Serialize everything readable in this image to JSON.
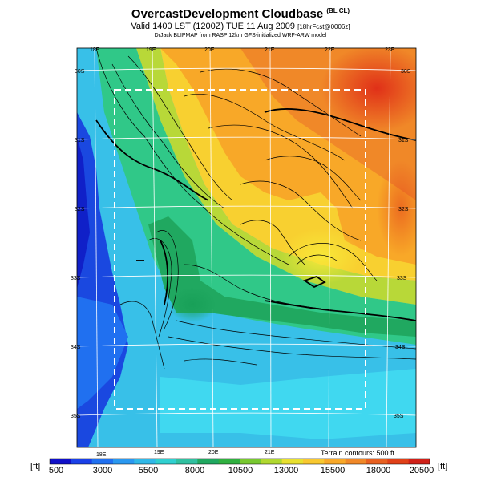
{
  "title": {
    "main": "OvercastDevelopment Cloudbase",
    "main_suffix": "(BL CL)",
    "valid": "Valid 1400 LST (1200Z) TUE 11 Aug 2009",
    "valid_suffix": "[18hrFcst@0006z]",
    "credit": "DrJack BLIPMAP from RASP 12km GFS-initialized WRF-ARW model"
  },
  "map": {
    "lon_labels_top": [
      "18E",
      "19E",
      "20E",
      "21E",
      "22E",
      "23E"
    ],
    "lon_labels_bottom": [
      "18E",
      "19E",
      "20E",
      "21E"
    ],
    "lat_labels_left": [
      "30S",
      "31S",
      "32S",
      "33S",
      "34S",
      "35S"
    ],
    "lat_labels_right": [
      "30S",
      "31S",
      "32S",
      "33S",
      "34S",
      "35S"
    ],
    "terrain_note": "Terrain contours: 500 ft"
  },
  "colorbar": {
    "unit_left": "[ft]",
    "unit_right": "[ft]",
    "tick_labels": [
      "500",
      "3000",
      "5500",
      "8000",
      "10500",
      "13000",
      "15500",
      "18000",
      "20500"
    ],
    "colors": [
      "#1010c8",
      "#1a40e8",
      "#2070f0",
      "#2a98f0",
      "#30b8e8",
      "#30d0d0",
      "#30c0a0",
      "#20a860",
      "#30b040",
      "#78c830",
      "#b0d830",
      "#e8e030",
      "#f8c830",
      "#f8a828",
      "#f08828",
      "#e86020",
      "#e04018",
      "#d02018"
    ]
  },
  "chart_data": {
    "type": "heatmap",
    "title": "OvercastDevelopment Cloudbase",
    "legend": "colorbar-bottom",
    "colorbar_range_ft": [
      500,
      20500
    ],
    "x_ticks": [
      "18E",
      "19E",
      "20E",
      "21E",
      "22E",
      "23E"
    ],
    "y_ticks": [
      "30S",
      "31S",
      "32S",
      "33S",
      "34S",
      "35S"
    ]
  }
}
